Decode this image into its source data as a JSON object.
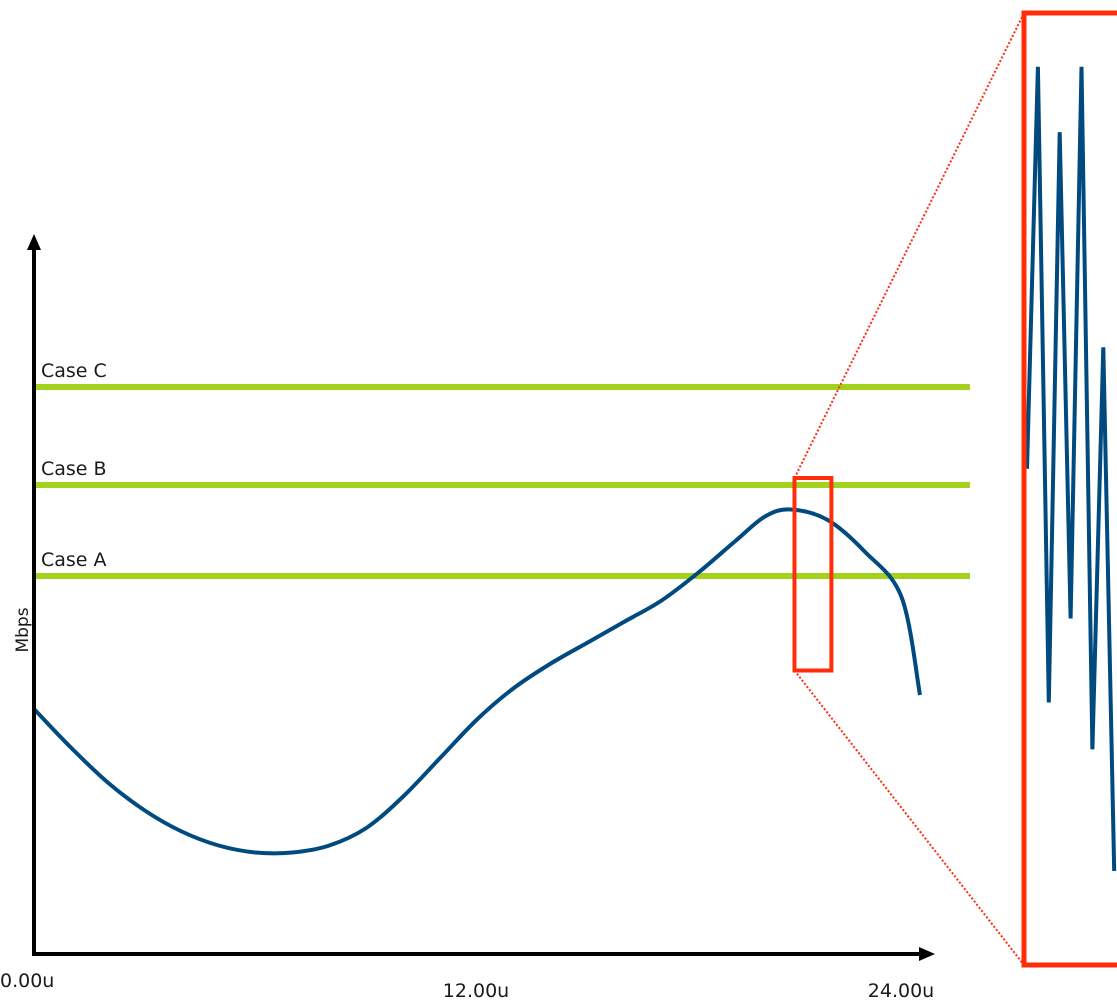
{
  "chart_data": {
    "type": "line",
    "title": "",
    "xlabel": "",
    "ylabel": "Mbps",
    "x_ticks": [
      "0.00u",
      "12.00u",
      "24.00u"
    ],
    "xlim": [
      0,
      24
    ],
    "ylim": [
      0,
      100
    ],
    "thresholds": [
      {
        "name": "Case C",
        "value": 81
      },
      {
        "name": "Case B",
        "value": 67
      },
      {
        "name": "Case A",
        "value": 54
      }
    ],
    "series": [
      {
        "x": [
          0,
          1,
          2,
          3,
          4,
          5,
          6,
          7,
          8,
          9,
          10,
          11,
          12,
          13,
          14,
          15,
          16,
          17,
          18,
          19,
          19.8,
          20.5,
          21.5,
          22.5,
          23.5,
          24
        ],
        "y": [
          35,
          29.5,
          24.5,
          20.5,
          17.5,
          15.5,
          14.5,
          14.5,
          15.5,
          18,
          22.5,
          28,
          33.5,
          38,
          41.5,
          44.5,
          47.5,
          50.5,
          54.5,
          59,
          62.5,
          63.5,
          62,
          57.5,
          51,
          37
        ]
      }
    ],
    "zoom_region": {
      "x_range": [
        20.6,
        21.6
      ],
      "y_range": [
        40.5,
        68
      ]
    },
    "inset_series": {
      "values": [
        52,
        95,
        27,
        88,
        36,
        95,
        22,
        65,
        9
      ]
    },
    "colors": {
      "line": "#004a80",
      "threshold": "#a4d21c",
      "zoom": "#ff2d0a",
      "axis": "#000000"
    }
  }
}
